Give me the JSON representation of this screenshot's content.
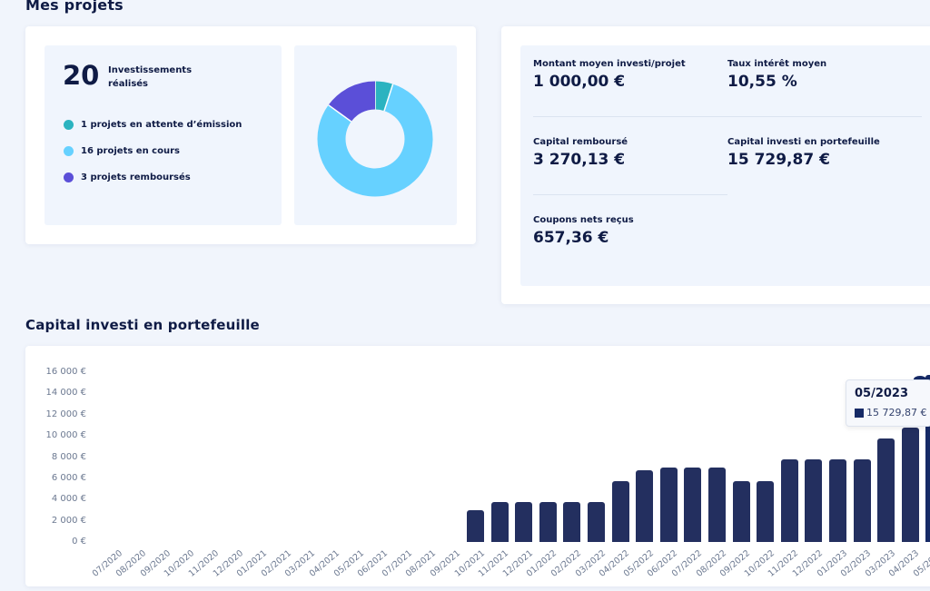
{
  "header": {
    "projects_title": "Mes projets",
    "chart_section_title": "Capital investi en portefeuille"
  },
  "stats": {
    "count": "20",
    "count_label": "Investissements réalisés",
    "legend": [
      {
        "label": "1 projets en attente d’émission",
        "color": "#2bb3c0",
        "value": 1
      },
      {
        "label": "16 projets en cours",
        "color": "#66d1ff",
        "value": 16
      },
      {
        "label": "3 projets remboursés",
        "color": "#5b4fd8",
        "value": 3
      }
    ]
  },
  "metrics": {
    "avg_amount": {
      "label": "Montant moyen investi/projet",
      "value": "1 000,00 €"
    },
    "avg_rate": {
      "label": "Taux intérêt moyen",
      "value": "10,55 %"
    },
    "capital_repaid": {
      "label": "Capital remboursé",
      "value": "3 270,13 €"
    },
    "capital_invested": {
      "label": "Capital investi en portefeuille",
      "value": "15 729,87 €"
    },
    "coupons": {
      "label": "Coupons nets reçus",
      "value": "657,36 €"
    }
  },
  "chart_data": {
    "type": "bar",
    "y_ticks": [
      "16 000 €",
      "14 000 €",
      "12 000 €",
      "10 000 €",
      "8 000 €",
      "6 000 €",
      "4 000 €",
      "2 000 €",
      "0 €"
    ],
    "ylim": [
      0,
      16000
    ],
    "categories": [
      "07/2020",
      "08/2020",
      "09/2020",
      "10/2020",
      "11/2020",
      "12/2020",
      "01/2021",
      "02/2021",
      "03/2021",
      "04/2021",
      "05/2021",
      "06/2021",
      "07/2021",
      "08/2021",
      "09/2021",
      "10/2021",
      "11/2021",
      "12/2021",
      "01/2022",
      "02/2022",
      "03/2022",
      "04/2022",
      "05/2022",
      "06/2022",
      "07/2022",
      "08/2022",
      "09/2022",
      "10/2022",
      "11/2022",
      "12/2022",
      "01/2023",
      "02/2023",
      "03/2023",
      "04/2023",
      "05/2023"
    ],
    "values": [
      0,
      0,
      0,
      0,
      0,
      0,
      0,
      0,
      0,
      0,
      0,
      0,
      0,
      0,
      0,
      3000,
      3750,
      3750,
      3750,
      3750,
      3750,
      5750,
      6750,
      7050,
      7050,
      7050,
      5750,
      5750,
      7750,
      7750,
      7750,
      7750,
      9750,
      10750,
      15729.87
    ],
    "tooltip": {
      "title": "05/2023",
      "value": "15 729,87 €"
    }
  }
}
